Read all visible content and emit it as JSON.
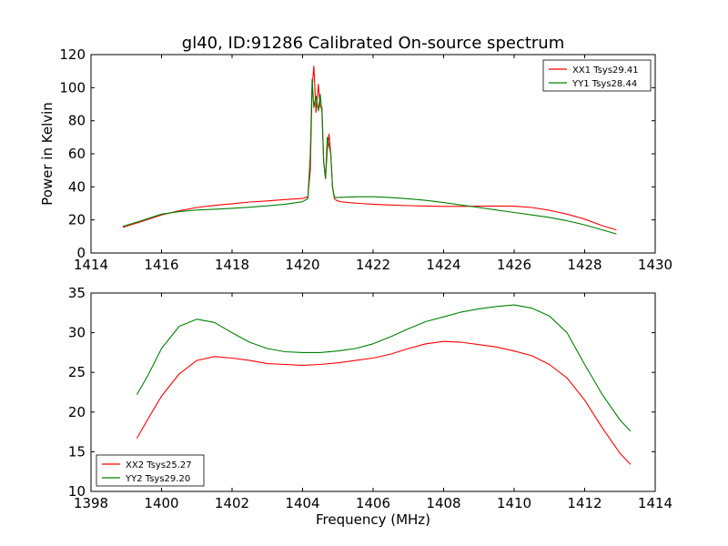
{
  "chart_data": [
    {
      "type": "line",
      "title": "gl40, ID:91286 Calibrated On-source spectrum",
      "xlabel": "",
      "ylabel": "Power in Kelvin",
      "xlim": [
        1414,
        1430
      ],
      "ylim": [
        0,
        120
      ],
      "xticks": [
        1414,
        1416,
        1418,
        1420,
        1422,
        1424,
        1426,
        1428,
        1430
      ],
      "yticks": [
        0,
        20,
        40,
        60,
        80,
        100,
        120
      ],
      "grid": false,
      "legend_position": "top-right",
      "series": [
        {
          "name": "XX1 Tsys29.41",
          "color": "#ff0000",
          "x": [
            1414.9,
            1415.5,
            1416,
            1416.5,
            1417,
            1417.5,
            1418,
            1418.5,
            1419,
            1419.5,
            1420,
            1420.15,
            1420.22,
            1420.27,
            1420.32,
            1420.38,
            1420.45,
            1420.5,
            1420.55,
            1420.6,
            1420.65,
            1420.7,
            1420.75,
            1420.8,
            1420.85,
            1420.9,
            1420.95,
            1421.0,
            1421.1,
            1421.3,
            1421.6,
            1422,
            1422.5,
            1423,
            1423.5,
            1424,
            1424.5,
            1425,
            1425.5,
            1426,
            1426.5,
            1427,
            1427.5,
            1428,
            1428.5,
            1428.9
          ],
          "y": [
            15.5,
            19.5,
            23,
            25.5,
            27.5,
            28.8,
            29.8,
            30.8,
            31.5,
            32.3,
            33,
            34,
            50,
            100,
            113,
            85,
            102,
            88,
            88,
            55,
            45,
            62,
            72,
            60,
            40,
            33,
            32,
            31.5,
            31,
            30.5,
            30,
            29.5,
            29,
            28.6,
            28.4,
            28.2,
            28.2,
            28.3,
            28.4,
            28.3,
            27.5,
            25.8,
            23.5,
            20.5,
            16.5,
            14
          ]
        },
        {
          "name": "YY1 Tsys28.44",
          "color": "#008000",
          "x": [
            1414.9,
            1415.5,
            1416,
            1416.5,
            1417,
            1417.5,
            1418,
            1418.5,
            1419,
            1419.5,
            1420,
            1420.15,
            1420.22,
            1420.27,
            1420.32,
            1420.38,
            1420.45,
            1420.5,
            1420.55,
            1420.6,
            1420.65,
            1420.7,
            1420.75,
            1420.8,
            1420.85,
            1420.9,
            1420.95,
            1421.0,
            1421.1,
            1421.3,
            1421.6,
            1422,
            1422.5,
            1423,
            1423.5,
            1424,
            1424.5,
            1425,
            1425.5,
            1426,
            1426.5,
            1427,
            1427.5,
            1428,
            1428.5,
            1428.9
          ],
          "y": [
            16,
            20,
            23.5,
            25,
            26,
            26.5,
            27,
            27.7,
            28.5,
            29.5,
            31,
            33,
            60,
            105,
            88,
            95,
            86,
            96,
            85,
            55,
            45,
            70,
            65,
            60,
            40,
            34,
            33.5,
            33.5,
            33.7,
            33.8,
            34,
            34,
            33.5,
            32.8,
            31.8,
            30.5,
            29,
            27.5,
            26,
            24.5,
            23,
            21.5,
            19.5,
            17,
            14,
            11.5
          ]
        }
      ]
    },
    {
      "type": "line",
      "title": "",
      "xlabel": "Frequency (MHz)",
      "ylabel": "",
      "xlim": [
        1398,
        1414
      ],
      "ylim": [
        10,
        35
      ],
      "xticks": [
        1398,
        1400,
        1402,
        1404,
        1406,
        1408,
        1410,
        1412,
        1414
      ],
      "yticks": [
        10,
        15,
        20,
        25,
        30,
        35
      ],
      "grid": false,
      "legend_position": "bottom-left",
      "series": [
        {
          "name": "XX2 Tsys25.27",
          "color": "#ff0000",
          "x": [
            1399.3,
            1399.6,
            1400,
            1400.5,
            1401,
            1401.5,
            1402,
            1402.5,
            1403,
            1403.5,
            1404,
            1404.5,
            1405,
            1405.5,
            1406,
            1406.5,
            1407,
            1407.5,
            1408,
            1408.5,
            1409,
            1409.5,
            1410,
            1410.5,
            1411,
            1411.5,
            1412,
            1412.5,
            1413,
            1413.3
          ],
          "y": [
            16.7,
            19,
            22,
            24.8,
            26.5,
            27,
            26.8,
            26.5,
            26.1,
            26,
            25.9,
            26,
            26.2,
            26.5,
            26.8,
            27.3,
            28,
            28.6,
            28.9,
            28.8,
            28.5,
            28.2,
            27.7,
            27.1,
            26,
            24.3,
            21.5,
            18,
            14.8,
            13.4
          ]
        },
        {
          "name": "YY2 Tsys29.20",
          "color": "#008000",
          "x": [
            1399.3,
            1399.6,
            1400,
            1400.5,
            1401,
            1401.5,
            1402,
            1402.5,
            1403,
            1403.5,
            1404,
            1404.5,
            1405,
            1405.5,
            1406,
            1406.5,
            1407,
            1407.5,
            1408,
            1408.5,
            1409,
            1409.5,
            1410,
            1410.5,
            1411,
            1411.5,
            1412,
            1412.5,
            1413,
            1413.3
          ],
          "y": [
            22.2,
            24.5,
            28,
            30.8,
            31.7,
            31.3,
            30,
            28.8,
            28,
            27.6,
            27.5,
            27.5,
            27.7,
            28,
            28.6,
            29.5,
            30.5,
            31.4,
            32,
            32.6,
            33,
            33.3,
            33.5,
            33.1,
            32.1,
            30,
            26,
            22.2,
            19,
            17.6
          ]
        }
      ]
    }
  ]
}
